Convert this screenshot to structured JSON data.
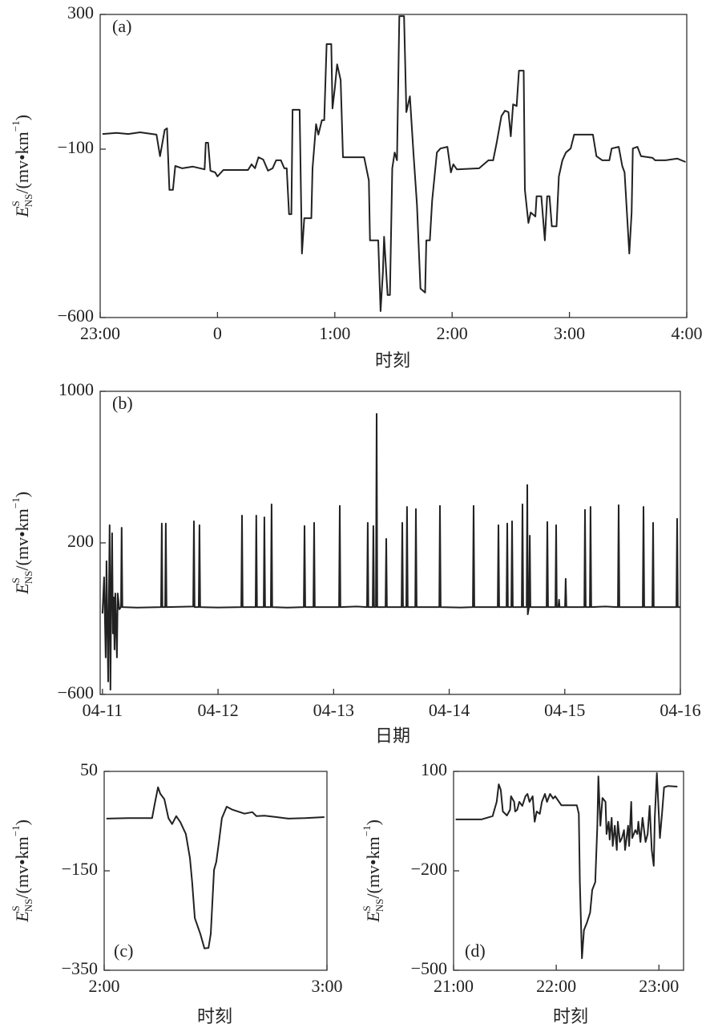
{
  "chart_data": [
    {
      "type": "line",
      "panel": "(a)",
      "xlabel": "时刻",
      "ylabel": {
        "symbol": "E",
        "sup": "S",
        "sub": "NS",
        "unit": "/(mv•km",
        "unit_sup": "−1",
        "unit_end": ")"
      },
      "xlim": [
        -1,
        4
      ],
      "xticks": [
        {
          "value": -1,
          "label": "23:00"
        },
        0,
        {
          "value": 1,
          "label": "1:00"
        },
        {
          "value": 2,
          "label": "2:00"
        },
        {
          "value": 3,
          "label": "3:00"
        },
        {
          "value": 4,
          "label": "4:00"
        }
      ],
      "ylim": [
        -600,
        300
      ],
      "yticks": [
        {
          "value": -600,
          "label": "−600"
        },
        {
          "value": -100,
          "label": "−100"
        },
        300
      ],
      "color": "#222222",
      "x": [
        -0.98,
        -0.86,
        -0.76,
        -0.66,
        -0.52,
        -0.49,
        -0.45,
        -0.43,
        -0.41,
        -0.38,
        -0.36,
        -0.3,
        -0.21,
        -0.11,
        -0.1,
        -0.08,
        -0.06,
        -0.02,
        0.0,
        0.05,
        0.26,
        0.29,
        0.32,
        0.35,
        0.39,
        0.43,
        0.47,
        0.5,
        0.54,
        0.57,
        0.59,
        0.61,
        0.63,
        0.64,
        0.7,
        0.72,
        0.74,
        0.8,
        0.81,
        0.84,
        0.86,
        0.89,
        0.91,
        0.93,
        0.97,
        0.98,
        1.0,
        1.02,
        1.05,
        1.07,
        1.25,
        1.29,
        1.3,
        1.37,
        1.39,
        1.41,
        1.42,
        1.45,
        1.47,
        1.49,
        1.51,
        1.53,
        1.55,
        1.59,
        1.61,
        1.64,
        1.67,
        1.7,
        1.73,
        1.77,
        1.78,
        1.81,
        1.83,
        1.87,
        1.9,
        1.96,
        1.99,
        2.01,
        2.04,
        2.23,
        2.27,
        2.31,
        2.35,
        2.38,
        2.42,
        2.45,
        2.48,
        2.5,
        2.52,
        2.55,
        2.57,
        2.61,
        2.62,
        2.65,
        2.67,
        2.71,
        2.72,
        2.76,
        2.79,
        2.81,
        2.83,
        2.85,
        2.89,
        2.91,
        2.94,
        2.97,
        3.01,
        3.04,
        3.2,
        3.23,
        3.28,
        3.34,
        3.36,
        3.42,
        3.45,
        3.47,
        3.51,
        3.53,
        3.54,
        3.58,
        3.61,
        3.71,
        3.73,
        3.82,
        3.92,
        3.99
      ],
      "values": [
        -55,
        -52,
        -55,
        -50,
        -57,
        -121,
        -43,
        -38,
        -221,
        -221,
        -150,
        -157,
        -152,
        -160,
        -81,
        -81,
        -164,
        -169,
        -181,
        -162,
        -162,
        -145,
        -157,
        -124,
        -131,
        -164,
        -157,
        -133,
        -133,
        -157,
        -157,
        -293,
        -293,
        17,
        17,
        -410,
        -305,
        -305,
        -157,
        -26,
        -57,
        -14,
        -14,
        212,
        212,
        21,
        81,
        152,
        105,
        -124,
        -124,
        -193,
        -371,
        -371,
        -581,
        -467,
        -360,
        -533,
        -533,
        -157,
        -110,
        -133,
        295,
        295,
        10,
        57,
        -110,
        -264,
        -514,
        -526,
        -371,
        -371,
        -252,
        -110,
        -98,
        -93,
        -169,
        -145,
        -160,
        -157,
        -145,
        -133,
        -133,
        -81,
        -2,
        14,
        10,
        -62,
        33,
        28,
        133,
        133,
        -221,
        -319,
        -288,
        -300,
        -240,
        -240,
        -371,
        -240,
        -240,
        -329,
        -329,
        -181,
        -133,
        -110,
        -98,
        -57,
        -57,
        -121,
        -133,
        -133,
        -98,
        -93,
        -150,
        -169,
        -410,
        -288,
        -98,
        -93,
        -121,
        -126,
        -133,
        -133,
        -128,
        -138
      ]
    },
    {
      "type": "line",
      "panel": "(b)",
      "xlabel": "日期",
      "ylabel": {
        "symbol": "E",
        "sup": "S",
        "sub": "NS",
        "unit": "/(mv•km",
        "unit_sup": "−1",
        "unit_end": ")"
      },
      "xlim": [
        -0.02,
        5
      ],
      "xticks": [
        {
          "value": 0,
          "label": "04-11"
        },
        {
          "value": 1,
          "label": "04-12"
        },
        {
          "value": 2,
          "label": "04-13"
        },
        {
          "value": 3,
          "label": "04-14"
        },
        {
          "value": 4,
          "label": "04-15"
        },
        {
          "value": 5,
          "label": "04-16"
        }
      ],
      "ylim": [
        -600,
        1000
      ],
      "yticks": [
        {
          "value": -600,
          "label": "−600"
        },
        200,
        1000
      ],
      "color": "#222222",
      "x": [
        0,
        0.014,
        0.028,
        0.035,
        0.049,
        0.055,
        0.062,
        0.069,
        0.076,
        0.083,
        0.09,
        0.097,
        0.104,
        0.111,
        0.125,
        0.132,
        0.146,
        0.16,
        0.166,
        0.172,
        0.3,
        0.507,
        0.513,
        0.519,
        0.542,
        0.548,
        0.554,
        0.785,
        0.791,
        0.797,
        0.833,
        0.839,
        0.845,
        1.0,
        1.201,
        1.207,
        1.213,
        1.325,
        1.331,
        1.337,
        1.395,
        1.401,
        1.407,
        1.457,
        1.463,
        1.469,
        1.6,
        1.742,
        1.748,
        1.754,
        1.825,
        1.831,
        1.837,
        2.047,
        2.053,
        2.059,
        2.2,
        2.289,
        2.295,
        2.301,
        2.338,
        2.344,
        2.35,
        2.366,
        2.372,
        2.378,
        2.449,
        2.455,
        2.461,
        2.588,
        2.594,
        2.6,
        2.629,
        2.635,
        2.641,
        2.706,
        2.712,
        2.718,
        2.914,
        2.92,
        2.926,
        3.1,
        3.205,
        3.211,
        3.217,
        3.42,
        3.426,
        3.432,
        3.496,
        3.502,
        3.508,
        3.538,
        3.544,
        3.55,
        3.628,
        3.634,
        3.64,
        3.67,
        3.676,
        3.68,
        3.69,
        3.697,
        3.703,
        3.843,
        3.849,
        3.855,
        3.919,
        3.925,
        3.931,
        3.945,
        3.95,
        3.955,
        4.002,
        4.008,
        4.014,
        4.169,
        4.175,
        4.181,
        4.217,
        4.223,
        4.229,
        4.35,
        4.46,
        4.466,
        4.472,
        4.675,
        4.681,
        4.687,
        4.758,
        4.764,
        4.77,
        4.966,
        4.972,
        4.978,
        5.0
      ],
      "values": [
        -173,
        18,
        -405,
        103,
        -532,
        -151,
        293,
        -575,
        -67,
        251,
        -278,
        -88,
        -363,
        -67,
        -405,
        -67,
        -151,
        -139,
        280,
        -139,
        -142,
        -139,
        302,
        -139,
        -139,
        302,
        -139,
        -136,
        314,
        -139,
        -139,
        293,
        -139,
        -141,
        -139,
        344,
        -139,
        -139,
        344,
        -139,
        -139,
        335,
        -139,
        -139,
        403,
        -139,
        -142,
        -139,
        289,
        -139,
        -139,
        306,
        -139,
        -139,
        395,
        -139,
        -136,
        -139,
        306,
        -139,
        -139,
        289,
        -139,
        -139,
        881,
        -139,
        -139,
        221,
        -139,
        -139,
        306,
        -139,
        -139,
        390,
        -139,
        -139,
        378,
        -139,
        -139,
        395,
        -139,
        -141,
        -139,
        395,
        -139,
        -139,
        293,
        -139,
        -139,
        302,
        -139,
        -139,
        314,
        -139,
        -139,
        403,
        -139,
        -139,
        505,
        -177,
        -139,
        238,
        -139,
        -139,
        310,
        -139,
        -139,
        293,
        -139,
        -139,
        -100,
        -139,
        -139,
        10,
        -139,
        -139,
        374,
        -139,
        -139,
        390,
        -139,
        -136,
        -139,
        399,
        -139,
        -139,
        390,
        -139,
        -139,
        306,
        -139,
        -139,
        327,
        -139,
        -139
      ]
    },
    {
      "type": "line",
      "panel": "(c)",
      "xlabel": "时刻",
      "ylabel": {
        "symbol": "E",
        "sup": "S",
        "sub": "NS",
        "unit": "/(mv•km",
        "unit_sup": "−1",
        "unit_end": ")"
      },
      "xlim": [
        0,
        60
      ],
      "xticks": [
        {
          "value": 0,
          "label": "2:00"
        },
        {
          "value": 60,
          "label": "3:00"
        }
      ],
      "ylim": [
        -350,
        50
      ],
      "yticks": [
        {
          "value": -350,
          "label": "−350"
        },
        {
          "value": -150,
          "label": "−150"
        },
        50
      ],
      "color": "#222222",
      "x": [
        0.6,
        6.5,
        12.9,
        13.6,
        14.5,
        15.1,
        16.2,
        17.3,
        18.3,
        19.4,
        20.5,
        22.0,
        23.1,
        23.7,
        24.4,
        25.9,
        27.0,
        28.1,
        28.7,
        29.6,
        30.2,
        30.9,
        31.7,
        33.0,
        34.5,
        37.8,
        39.9,
        41.0,
        43.2,
        46.4,
        49.6,
        54.0,
        59.3
      ],
      "values": [
        -45,
        -44,
        -44,
        -16,
        18,
        5,
        -6,
        -44,
        -56,
        -40,
        -52,
        -76,
        -124,
        -173,
        -245,
        -277,
        -306,
        -305,
        -277,
        -148,
        -132,
        -92,
        -44,
        -21,
        -27,
        -35,
        -32,
        -40,
        -39,
        -42,
        -45,
        -44,
        -42
      ]
    },
    {
      "type": "line",
      "panel": "(d)",
      "xlabel": "时刻",
      "ylabel": {
        "symbol": "E",
        "sup": "S",
        "sub": "NS",
        "unit": "/(mv•km",
        "unit_sup": "−1",
        "unit_end": ")"
      },
      "xlim": [
        21,
        23.24
      ],
      "xticks": [
        {
          "value": 21,
          "label": "21:00"
        },
        {
          "value": 22,
          "label": "22:00"
        },
        {
          "value": 23,
          "label": "23:00"
        }
      ],
      "ylim": [
        -500,
        100
      ],
      "yticks": [
        {
          "value": -500,
          "label": "−500"
        },
        {
          "value": -200,
          "label": "−200"
        },
        100
      ],
      "color": "#222222",
      "x": [
        21.02,
        21.27,
        21.38,
        21.42,
        21.44,
        21.46,
        21.48,
        21.52,
        21.55,
        21.56,
        21.59,
        21.6,
        21.62,
        21.64,
        21.67,
        21.7,
        21.72,
        21.74,
        21.77,
        21.79,
        21.81,
        21.84,
        21.86,
        21.89,
        21.91,
        21.94,
        21.97,
        21.99,
        22.05,
        22.2,
        22.22,
        22.23,
        22.25,
        22.27,
        22.3,
        22.33,
        22.35,
        22.38,
        22.4,
        22.41,
        22.43,
        22.45,
        22.48,
        22.49,
        22.51,
        22.52,
        22.54,
        22.55,
        22.57,
        22.59,
        22.6,
        22.62,
        22.64,
        22.66,
        22.67,
        22.7,
        22.71,
        22.73,
        22.74,
        22.77,
        22.79,
        22.8,
        22.82,
        22.84,
        22.87,
        22.89,
        22.91,
        22.93,
        22.95,
        22.96,
        22.98,
        23.01,
        23.03,
        23.05,
        23.09,
        23.18
      ],
      "values": [
        -45,
        -45,
        -35,
        8,
        61,
        44,
        -21,
        -33,
        -16,
        25,
        8,
        -21,
        -16,
        8,
        -4,
        25,
        32,
        8,
        25,
        -52,
        -21,
        -28,
        8,
        32,
        8,
        32,
        18,
        25,
        -2,
        -2,
        -28,
        -234,
        -464,
        -379,
        -355,
        -326,
        -258,
        -234,
        -64,
        85,
        -64,
        20,
        8,
        -89,
        -52,
        -106,
        -40,
        -125,
        -64,
        -137,
        -52,
        -113,
        -101,
        -77,
        -137,
        -64,
        -125,
        8,
        -101,
        -77,
        -89,
        -52,
        -113,
        -40,
        -113,
        -89,
        -4,
        -137,
        -185,
        -40,
        95,
        -101,
        -28,
        52,
        56,
        54
      ]
    }
  ]
}
